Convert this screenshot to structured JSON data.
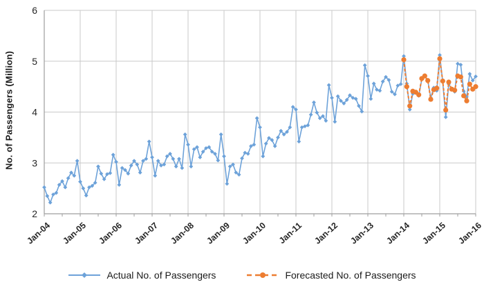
{
  "y_axis": {
    "title": "No. of Passengers (Million)",
    "ticks": [
      2,
      3,
      4,
      5,
      6
    ],
    "min": 2,
    "max": 6
  },
  "x_axis": {
    "labels": [
      "Jan-04",
      "Jan-05",
      "Jan-06",
      "Jan-07",
      "Jan-08",
      "Jan-09",
      "Jan-10",
      "Jan-11",
      "Jan-12",
      "Jan-13",
      "Jan-14",
      "Jan-15",
      "Jan-16"
    ],
    "interval": "monthly",
    "months_total": 145
  },
  "colors": {
    "actual": "#6DA2D9",
    "forecast": "#ED7D31",
    "gridline": "#C9C9C9",
    "axis": "#9E9E9E",
    "text": "#262626"
  },
  "chart_data": {
    "type": "line",
    "title": "",
    "xlabel": "",
    "ylabel": "No. of Passengers (Million)",
    "ylim": [
      2,
      6
    ],
    "grid": true,
    "legend_position": "bottom",
    "x_start": "Jan-04",
    "x_end": "Jan-16",
    "x_month_count": 145,
    "xtick_labels": [
      "Jan-04",
      "Jan-05",
      "Jan-06",
      "Jan-07",
      "Jan-08",
      "Jan-09",
      "Jan-10",
      "Jan-11",
      "Jan-12",
      "Jan-13",
      "Jan-14",
      "Jan-15",
      "Jan-16"
    ],
    "series": [
      {
        "name": "Actual No. of Passengers",
        "color": "#6DA2D9",
        "marker": "diamond",
        "line_style": "solid",
        "start_index": 0,
        "values": [
          2.52,
          2.35,
          2.22,
          2.38,
          2.41,
          2.57,
          2.64,
          2.52,
          2.7,
          2.81,
          2.75,
          3.04,
          2.63,
          2.5,
          2.36,
          2.52,
          2.55,
          2.61,
          2.93,
          2.79,
          2.68,
          2.78,
          2.8,
          3.16,
          3.02,
          2.57,
          2.9,
          2.86,
          2.79,
          2.95,
          3.04,
          2.97,
          2.81,
          3.04,
          3.08,
          3.42,
          3.11,
          2.75,
          3.04,
          2.95,
          2.97,
          3.13,
          3.18,
          3.08,
          2.93,
          3.08,
          2.9,
          3.56,
          3.36,
          2.93,
          3.27,
          3.31,
          3.11,
          3.22,
          3.29,
          3.31,
          3.22,
          3.18,
          3.05,
          3.56,
          3.13,
          2.59,
          2.93,
          2.97,
          2.81,
          2.77,
          3.09,
          3.2,
          3.18,
          3.33,
          3.36,
          3.88,
          3.7,
          3.13,
          3.38,
          3.49,
          3.45,
          3.33,
          3.5,
          3.63,
          3.56,
          3.61,
          3.7,
          4.1,
          4.05,
          3.42,
          3.7,
          3.72,
          3.74,
          3.95,
          4.19,
          3.99,
          3.88,
          3.92,
          3.83,
          4.53,
          4.28,
          3.81,
          4.31,
          4.22,
          4.17,
          4.24,
          4.33,
          4.28,
          4.26,
          4.12,
          4.01,
          4.92,
          4.71,
          4.26,
          4.56,
          4.44,
          4.42,
          4.6,
          4.69,
          4.63,
          4.4,
          4.35,
          4.52,
          4.55,
          5.1,
          4.56,
          4.05,
          4.36,
          4.38,
          4.32,
          4.64,
          4.71,
          4.62,
          4.28,
          4.48,
          4.42,
          5.12,
          4.59,
          3.9,
          4.55,
          4.45,
          4.4,
          4.95,
          4.93,
          4.41,
          4.3,
          4.75,
          4.62,
          4.7
        ]
      },
      {
        "name": "Forecasted No. of Passengers",
        "color": "#ED7D31",
        "marker": "circle",
        "line_style": "dashed",
        "start_index": 120,
        "start_month": "Jan-14",
        "values": [
          5.03,
          4.5,
          4.12,
          4.41,
          4.39,
          4.34,
          4.66,
          4.71,
          4.62,
          4.25,
          4.44,
          4.47,
          5.05,
          4.61,
          4.04,
          4.59,
          4.45,
          4.43,
          4.71,
          4.69,
          4.32,
          4.22,
          4.55,
          4.45,
          4.5
        ]
      }
    ]
  }
}
